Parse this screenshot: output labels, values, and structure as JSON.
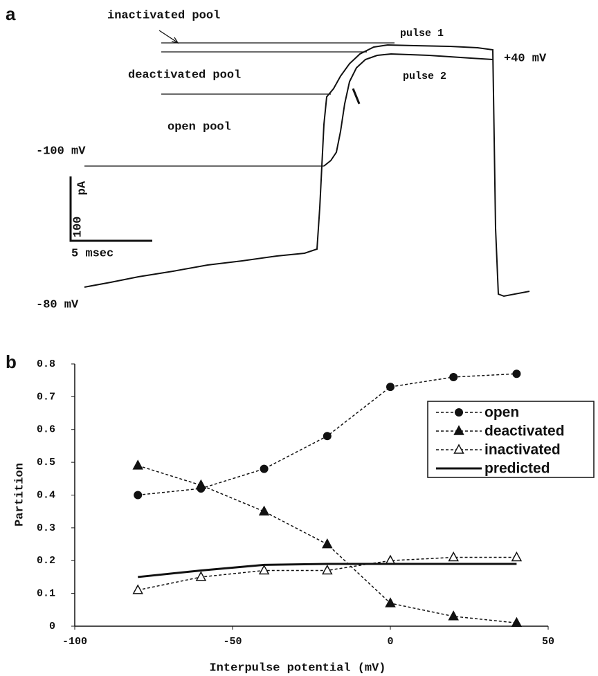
{
  "panel_a": {
    "label": "a",
    "texts": [
      "inactivated pool",
      "pulse 1",
      "+40 mV",
      "deactivated pool",
      "pulse 2",
      "open pool",
      "-100 mV",
      "pA",
      "100",
      "5 msec",
      "-80 mV"
    ]
  },
  "chart_data": {
    "type": "line",
    "panel_label": "b",
    "x_label": "Interpulse potential (mV)",
    "y_label": "Partition",
    "x": [
      -80,
      -60,
      -40,
      -20,
      0,
      20,
      40
    ],
    "series": [
      {
        "name": "open",
        "color": "#111111",
        "marker": "circle",
        "dashed": true,
        "values": [
          0.4,
          0.42,
          0.48,
          0.58,
          0.73,
          0.76,
          0.77
        ]
      },
      {
        "name": "deactivated",
        "color": "#111111",
        "marker": "triangle",
        "dashed": true,
        "values": [
          0.49,
          0.43,
          0.35,
          0.25,
          0.07,
          0.03,
          0.01
        ]
      },
      {
        "name": "inactivated",
        "color": "#111111",
        "marker": "triangle-open",
        "dashed": true,
        "values": [
          0.11,
          0.15,
          0.17,
          0.17,
          0.2,
          0.21,
          0.21
        ]
      },
      {
        "name": "predicted",
        "color": "#111111",
        "marker": "none",
        "dashed": false,
        "values": [
          0.15,
          0.17,
          0.187,
          0.19,
          0.19,
          0.19,
          0.19
        ]
      }
    ],
    "xlim": [
      -100,
      50
    ],
    "xticks": [
      -100,
      -50,
      0,
      50
    ],
    "ylim": [
      0,
      0.8
    ],
    "yticks": [
      0,
      0.1,
      0.2,
      0.3,
      0.4,
      0.5,
      0.6,
      0.7,
      0.8
    ],
    "grid": false,
    "legend_position": "right"
  }
}
